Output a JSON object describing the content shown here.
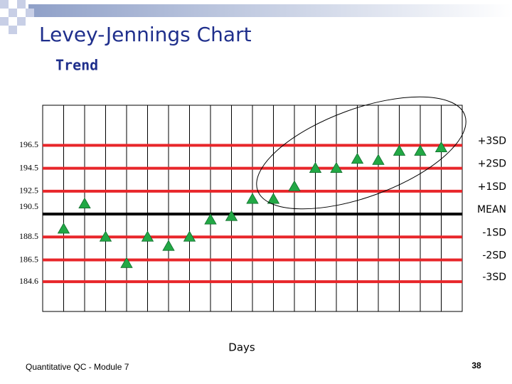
{
  "chart_data": {
    "type": "scatter",
    "title": "Levey-Jennings Chart",
    "subtitle": "Trend",
    "x_label": "Days",
    "footer": "Quantitative QC - Module 7",
    "page_number": "38",
    "x": [
      1,
      2,
      3,
      4,
      5,
      6,
      7,
      8,
      9,
      10,
      11,
      12,
      13,
      14,
      15,
      16,
      17,
      18,
      19
    ],
    "values": [
      189.2,
      191.4,
      188.5,
      186.2,
      188.5,
      187.7,
      188.5,
      190.0,
      190.3,
      191.8,
      191.8,
      192.9,
      194.5,
      194.5,
      195.3,
      195.2,
      196.0,
      196.0,
      196.3
    ],
    "color": "#22a845",
    "xlim": [
      0,
      20
    ],
    "ylim": [
      182,
      200
    ],
    "yticks": [
      196.5,
      194.5,
      192.5,
      190.5,
      188.5,
      186.5,
      184.6
    ],
    "limit_labels": [
      "+3SD",
      "+2SD",
      "+1SD",
      "MEAN",
      "-1SD",
      "-2SD",
      "-3SD"
    ],
    "limit_color": "#e8262a",
    "mean_color": "#000000"
  }
}
